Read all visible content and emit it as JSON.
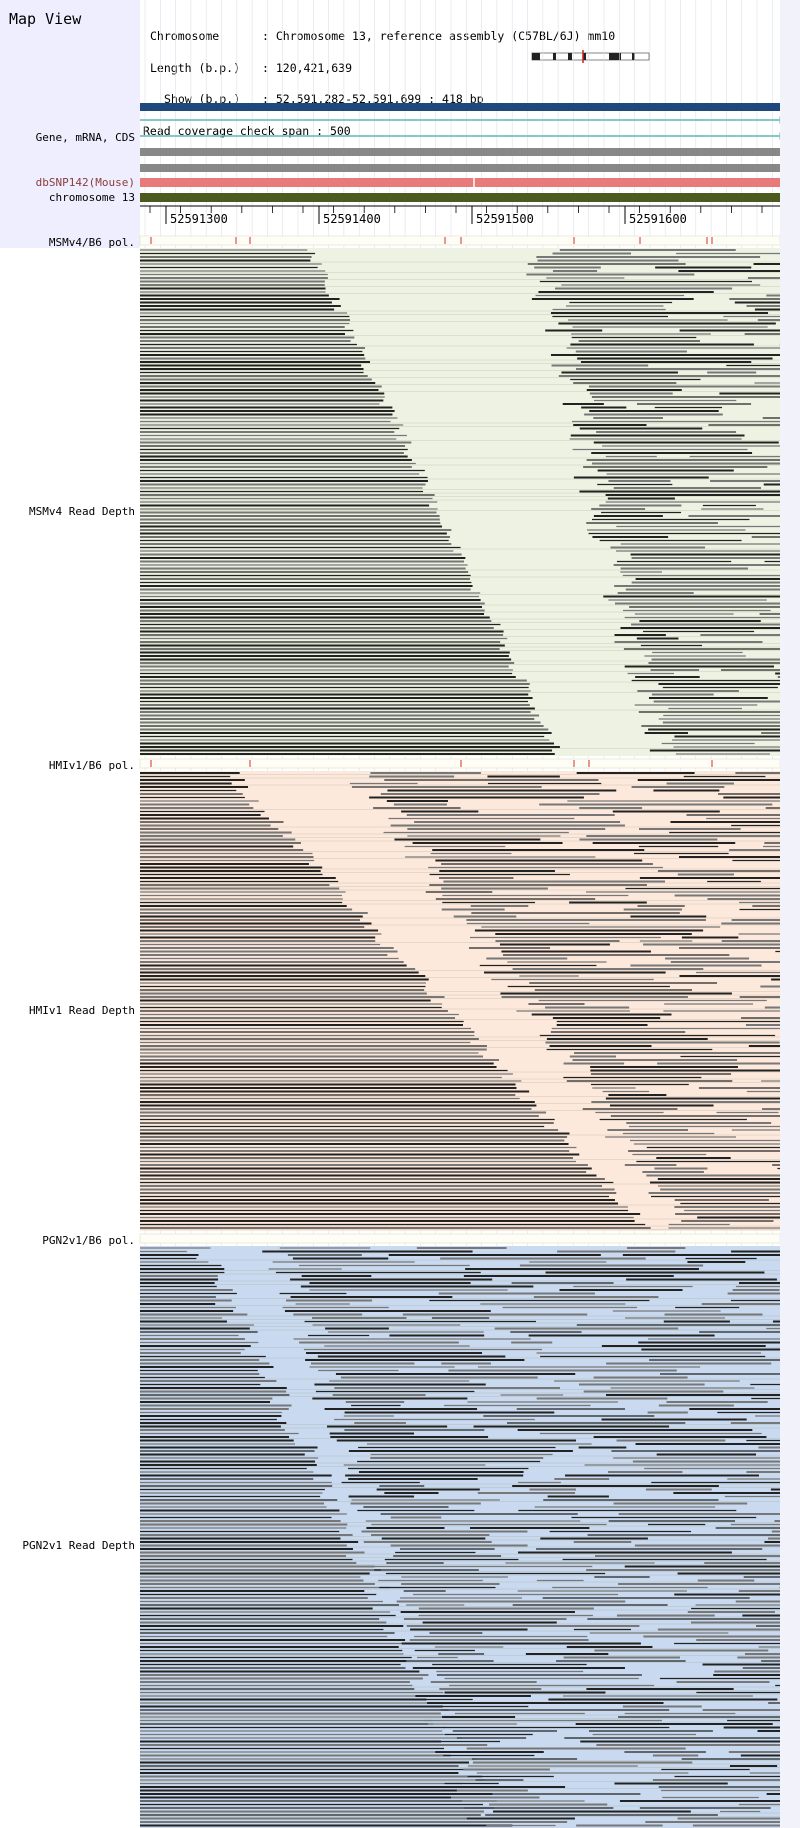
{
  "app": {
    "title": "Map View"
  },
  "info": {
    "chromosome_label": "Chromosome",
    "chromosome_value": "Chromosome 13, reference assembly (C57BL/6J) mm10",
    "length_label": "Length (b.p.)",
    "length_value": "120,421,639",
    "show_label": "Show (b.p.)",
    "show_value": "52,591,282-52,591,699 : 418 bp",
    "coverage_label": "Read coverage check span",
    "coverage_value": "500"
  },
  "tracks": {
    "gene_label": "Gene, mRNA, CDS",
    "snp_label": "dbSNP142(Mouse)",
    "chromosome_label": "chromosome 13"
  },
  "ruler": {
    "ticks": [
      "52591300",
      "52591400",
      "52591500",
      "52591600"
    ]
  },
  "colors": {
    "gene_blue": "#1f497d",
    "mrna_teal": "#5fb5b5",
    "cds_gray": "#888888",
    "snp_red": "#e87a7a",
    "chrom_olive": "#4b5a1e",
    "msmv4_bg": "#eef2e3",
    "hmiv1_bg": "#fde9dc",
    "pgn2v1_bg": "#c9d9ef",
    "read_dark": "#222222",
    "read_mid": "#777777"
  },
  "strains": [
    {
      "pol_label": "MSMv4/B6 pol.",
      "depth_label": "MSMv4 Read Depth",
      "key": "msmv4"
    },
    {
      "pol_label": "HMIv1/B6 pol.",
      "depth_label": "HMIv1 Read Depth",
      "key": "hmiv1"
    },
    {
      "pol_label": "PGN2v1/B6 pol.",
      "depth_label": "PGN2v1 Read Depth",
      "key": "pgn2v1"
    }
  ]
}
